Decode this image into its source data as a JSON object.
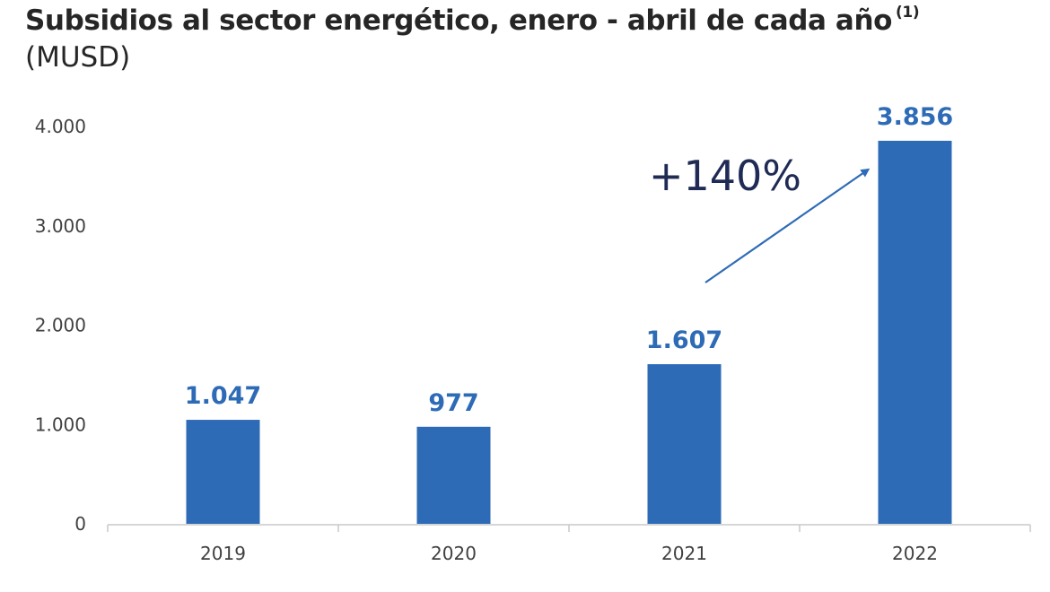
{
  "header": {
    "title": "Subsidios al sector energético, enero - abril de cada año",
    "title_note": "(1)",
    "subtitle": "(MUSD)"
  },
  "colors": {
    "bar": "#2e6bb6",
    "data_label": "#2e6bb6",
    "annotation": "#1f2b55",
    "arrow": "#2e6bb6",
    "axis": "#c8c8c8",
    "tick_text": "#404040"
  },
  "chart_data": {
    "type": "bar",
    "categories": [
      "2019",
      "2020",
      "2021",
      "2022"
    ],
    "values": [
      1047,
      977,
      1607,
      3856
    ],
    "data_labels": [
      "1.047",
      "977",
      "1.607",
      "3.856"
    ],
    "y_ticks": [
      0,
      1000,
      2000,
      3000,
      4000
    ],
    "y_tick_labels": [
      "0",
      "1.000",
      "2.000",
      "3.000",
      "4.000"
    ],
    "ylim": [
      0,
      4000
    ],
    "grid": false,
    "annotation": {
      "text": "+140%",
      "arrow_icon": "trend-arrow-icon"
    }
  }
}
